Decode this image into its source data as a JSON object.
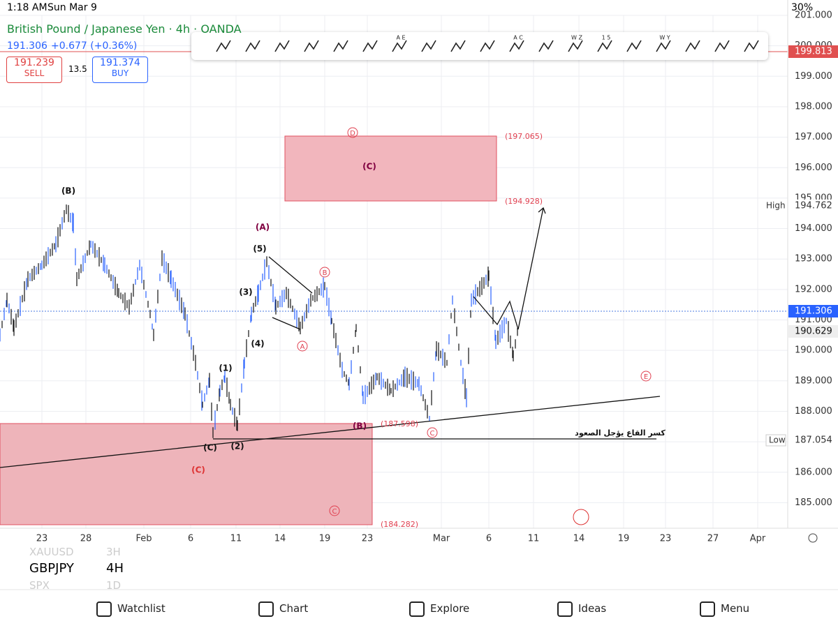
{
  "status": {
    "time": "1:18 AM",
    "date": "Sun Mar 9",
    "battery": "30%"
  },
  "symbol": {
    "name": "British Pound / Japanese Yen · 4h · OANDA",
    "price": "191.306",
    "change": "+0.677 (+0.36%)"
  },
  "trade": {
    "sell_price": "191.239",
    "sell": "SELL",
    "spread": "13.5",
    "buy_price": "191.374",
    "buy": "BUY"
  },
  "toolbar": [
    "A E",
    "A C",
    "W Z",
    "1 5",
    "W Y"
  ],
  "price_axis": [
    "201.000",
    "200.000",
    "199.000",
    "198.000",
    "197.000",
    "196.000",
    "195.000",
    "194.000",
    "193.000",
    "192.000",
    "191.000",
    "190.000",
    "189.000",
    "188.000",
    "187.000",
    "186.000",
    "185.000"
  ],
  "price_badges": {
    "top": "199.813",
    "current": "191.306",
    "close": "190.629",
    "high_label": "High",
    "high": "194.762",
    "low_label": "Low",
    "low": "187.054"
  },
  "time_axis": [
    "23",
    "28",
    "Feb",
    "6",
    "11",
    "14",
    "19",
    "23",
    "Mar",
    "6",
    "11",
    "14",
    "19",
    "23",
    "27",
    "Apr"
  ],
  "annotations": [
    "(B)",
    "(A)",
    "(5)",
    "(3)",
    "(4)",
    "(1)",
    "(2)",
    "(C)",
    "(C)",
    "(C)",
    "D",
    "B",
    "A",
    "C",
    "E",
    "C",
    "(197.065)",
    "(194.928)",
    "(187.598)",
    "(184.282)",
    "(B)",
    "كسر القاع يؤجل الصعود"
  ],
  "bottom": {
    "symbol": "GBPJPY",
    "interval": "4H",
    "faded": [
      "XAUUSD",
      "3H",
      "SPX",
      "1D"
    ]
  },
  "nav": [
    "Watchlist",
    "Chart",
    "Explore",
    "Ideas",
    "Menu"
  ]
}
